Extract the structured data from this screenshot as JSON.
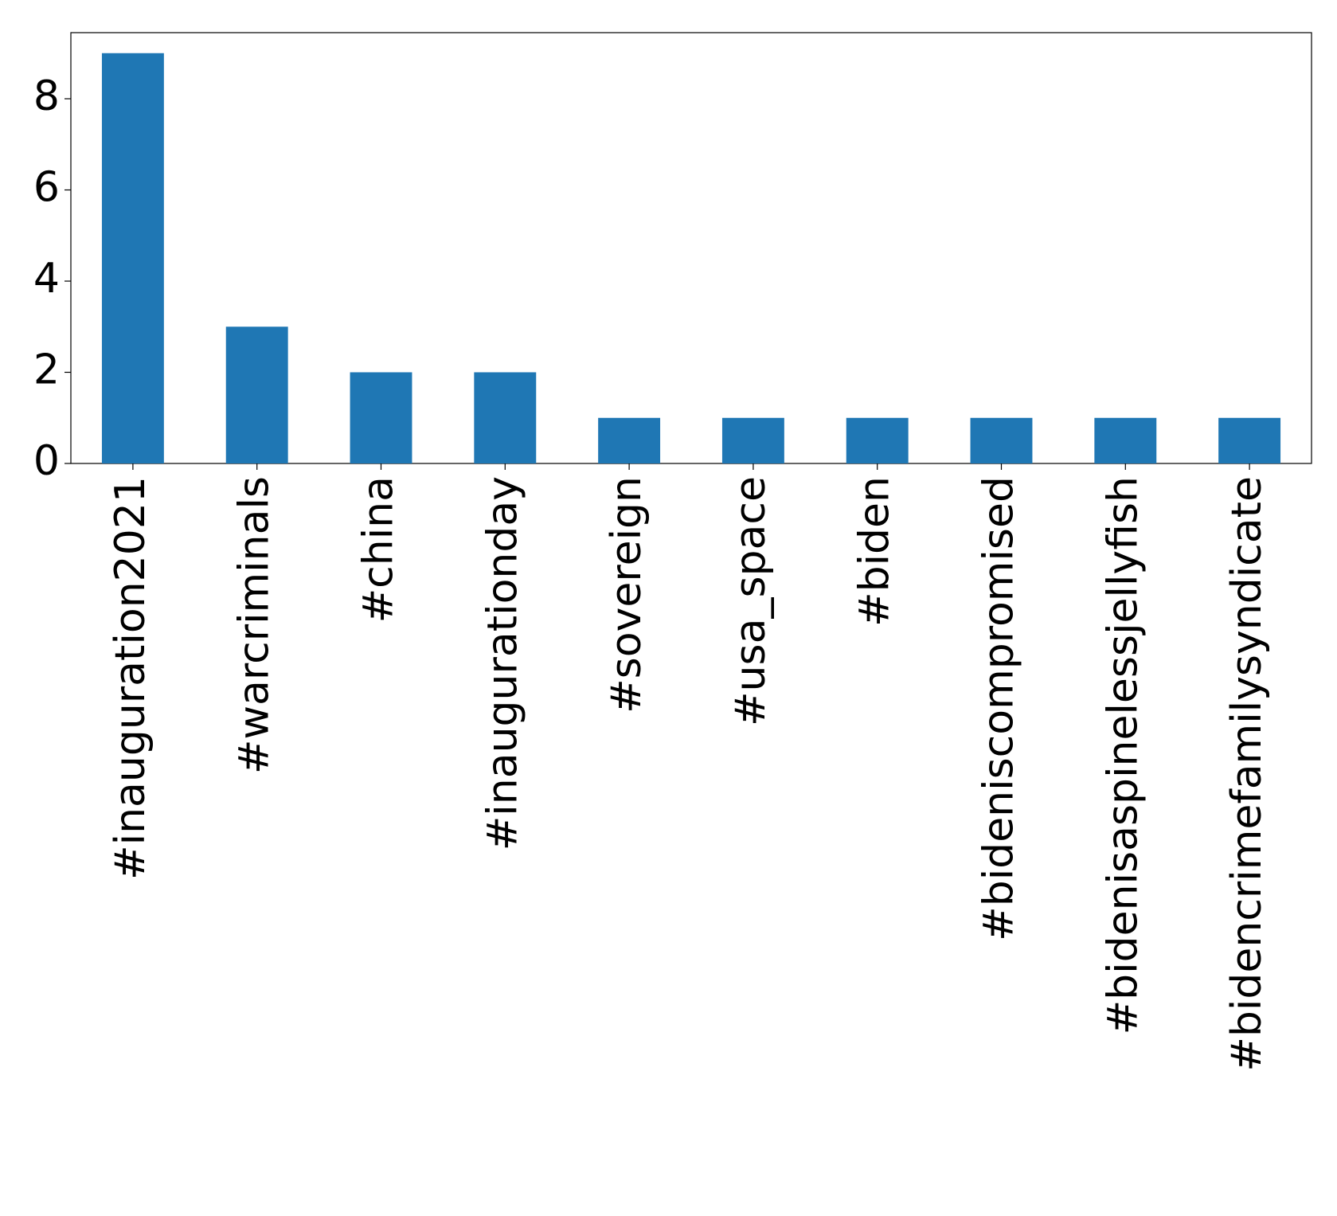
{
  "chart_data": {
    "type": "bar",
    "categories": [
      "#inauguration2021",
      "#warcriminals",
      "#china",
      "#inaugurationday",
      "#sovereign",
      "#usa_space",
      "#biden",
      "#bideniscompromised",
      "#bidenisaspinelessjellyfish",
      "#bidencrimefamilysyndicate"
    ],
    "values": [
      9,
      3,
      2,
      2,
      1,
      1,
      1,
      1,
      1,
      1
    ],
    "color": "#1f77b4",
    "ylim": [
      0,
      9.45
    ],
    "yticks": [
      0,
      2,
      4,
      6,
      8
    ],
    "grid": false
  }
}
